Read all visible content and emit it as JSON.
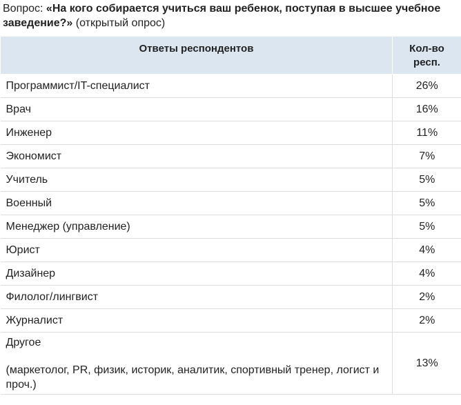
{
  "question": {
    "prefix": "Вопрос: ",
    "text": "«На кого собирается учиться ваш ребенок, поступая в высшее учебное заведение?»",
    "suffix": " (открытый опрос)"
  },
  "table": {
    "headers": {
      "answers": "Ответы респондентов",
      "count": "Кол-во респ."
    },
    "rows": [
      {
        "label": "Программист/IT-специалист",
        "value": "26%"
      },
      {
        "label": "Врач",
        "value": "16%"
      },
      {
        "label": "Инженер",
        "value": "11%"
      },
      {
        "label": "Экономист",
        "value": "7%"
      },
      {
        "label": "Учитель",
        "value": "5%"
      },
      {
        "label": "Военный",
        "value": "5%"
      },
      {
        "label": "Менеджер (управление)",
        "value": "5%"
      },
      {
        "label": "Юрист",
        "value": "4%"
      },
      {
        "label": "Дизайнер",
        "value": "4%"
      },
      {
        "label": "Филолог/лингвист",
        "value": "2%"
      },
      {
        "label": "Журналист",
        "value": "2%"
      }
    ],
    "other": {
      "label": "Другое",
      "note": "(маркетолог, PR, физик, историк, аналитик, спортивный тренер, логист и проч.)",
      "value": "13%"
    }
  }
}
